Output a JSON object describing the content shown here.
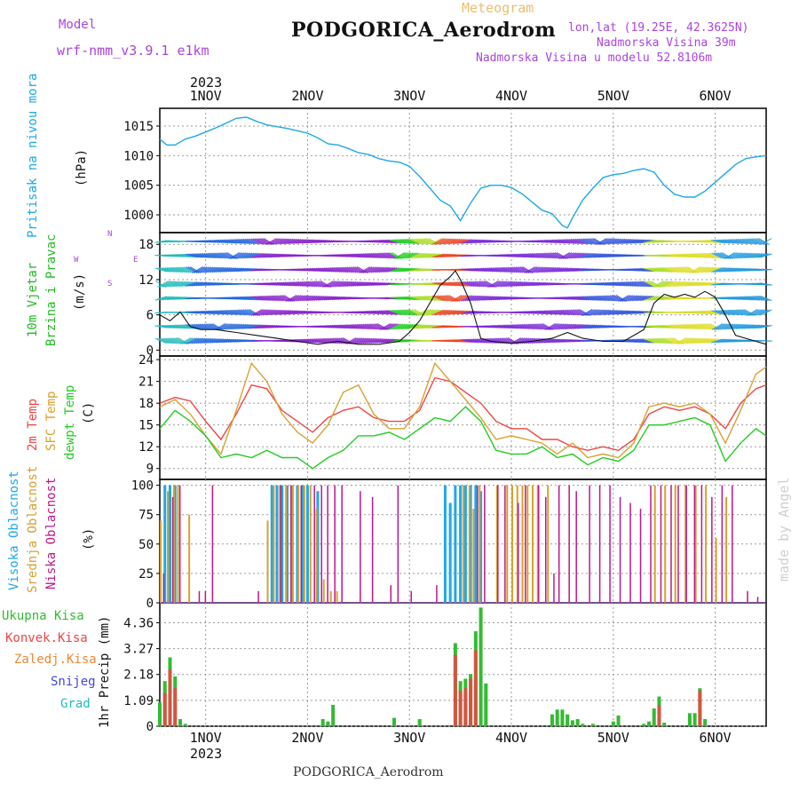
{
  "header": {
    "model_label": "Model",
    "model_name": "wrf-nmm_v3.9.1 e1km",
    "meteogram_label": "Meteogram",
    "station_title": "PODGORICA_Aerodrom",
    "lonlat": "lon,lat (19.25E, 42.3625N)",
    "elevation": "Nadmorska Visina 39m",
    "model_elevation": "Nadmorska Visina u modelu 52.8106m",
    "year_top": "2023",
    "year_bottom": "2023",
    "footer_station": "PODGORICA_Aerodrom",
    "watermark": "made by Angel"
  },
  "colors": {
    "pressure": "#1ea8e8",
    "temp2m": "#ee4444",
    "sfc": "#d8a030",
    "dewpt": "#22cc22",
    "high_cloud": "#1ea8e8",
    "mid_cloud": "#d8a030",
    "low_cloud": "#c0168a",
    "rain_total": "#33bb33",
    "rain_conv": "#ee4444",
    "freezing": "#ee8833",
    "snow": "#4444dd",
    "grad": "#22bbbb",
    "wind_label": "#22bb22",
    "compass": "#aa44dd"
  },
  "x_axis": {
    "days": [
      "1NOV",
      "2NOV",
      "3NOV",
      "4NOV",
      "5NOV",
      "6NOV"
    ]
  },
  "panels": {
    "pressure": {
      "label": "Pritisak na nivou mora",
      "unit": "(hPa)"
    },
    "wind": {
      "label1": "10m Vjetar",
      "label2": "Brzina i Pravac",
      "unit": "(m/s)",
      "compass_n": "N",
      "compass_s": "S",
      "compass_w": "W",
      "compass_e": "E"
    },
    "temp": {
      "label1": "2m Temp",
      "label2": "SFC Temp",
      "label3": "dewpt Temp",
      "unit": "(C)"
    },
    "cloud": {
      "label1": "Visoka Oblacnost",
      "label2": "Srednja Oblacnost",
      "label3": "Niska Oblacnost",
      "unit": "(%)"
    },
    "precip": {
      "ylabel": "1hr Precip (mm)",
      "legend": [
        "Ukupna Kisa",
        "Konvek.Kisa",
        "Zaledj.Kisa",
        "Snijeg",
        "Grad"
      ]
    }
  },
  "chart_data": [
    {
      "type": "line",
      "title": "Pritisak na nivou mora",
      "ylabel": "(hPa)",
      "ylim": [
        997,
        1018
      ],
      "yticks": [
        1000,
        1005,
        1010,
        1015
      ],
      "x_start_day": 0.55,
      "x_end_day": 6.5,
      "series": [
        {
          "x": [
            0.55,
            0.62,
            0.7,
            0.8,
            0.9,
            1.0,
            1.1,
            1.2,
            1.3,
            1.4,
            1.5,
            1.6,
            1.7,
            1.8,
            1.9,
            2.0,
            2.1,
            2.2,
            2.3,
            2.4,
            2.5,
            2.6,
            2.7,
            2.8,
            2.9,
            3.0,
            3.1,
            3.2,
            3.3,
            3.4,
            3.5,
            3.6,
            3.7,
            3.8,
            3.9,
            4.0,
            4.1,
            4.2,
            4.3,
            4.4,
            4.5,
            4.55,
            4.6,
            4.7,
            4.8,
            4.9,
            5.0,
            5.1,
            5.2,
            5.3,
            5.4,
            5.5,
            5.6,
            5.7,
            5.8,
            5.9,
            6.0,
            6.1,
            6.2,
            6.3,
            6.4,
            6.5
          ],
          "values": [
            1012.8,
            1011.8,
            1011.8,
            1012.8,
            1013.3,
            1014.0,
            1014.7,
            1015.5,
            1016.3,
            1016.5,
            1015.8,
            1015.2,
            1014.9,
            1014.6,
            1014.2,
            1013.8,
            1013.0,
            1012.0,
            1011.8,
            1011.2,
            1010.5,
            1010.2,
            1009.5,
            1009.1,
            1008.9,
            1008.2,
            1006.5,
            1004.5,
            1002.5,
            1001.5,
            999.0,
            1002.0,
            1004.5,
            1005.0,
            1005.0,
            1004.6,
            1003.6,
            1002.2,
            1000.8,
            1000.2,
            998.2,
            997.8,
            999.5,
            1002.5,
            1004.5,
            1006.3,
            1006.8,
            1007.0,
            1007.5,
            1007.8,
            1007.2,
            1005.0,
            1003.5,
            1003.0,
            1003.0,
            1004.0,
            1005.5,
            1007.0,
            1008.5,
            1009.5,
            1009.8,
            1010.0
          ]
        }
      ]
    },
    {
      "type": "line",
      "title": "10m Vjetar Brzina i Pravac",
      "ylabel": "(m/s)",
      "ylim": [
        -1,
        20
      ],
      "yticks": [
        0,
        6,
        12,
        18
      ],
      "series": [
        {
          "name": "speed",
          "x": [
            0.55,
            0.65,
            0.75,
            0.85,
            0.95,
            1.1,
            1.3,
            1.5,
            1.7,
            1.9,
            2.1,
            2.3,
            2.5,
            2.7,
            2.9,
            3.0,
            3.1,
            3.2,
            3.3,
            3.4,
            3.45,
            3.5,
            3.6,
            3.7,
            3.8,
            4.0,
            4.2,
            4.4,
            4.55,
            4.7,
            4.9,
            5.1,
            5.3,
            5.4,
            5.5,
            5.6,
            5.7,
            5.8,
            5.9,
            6.0,
            6.1,
            6.2,
            6.3,
            6.4,
            6.5
          ],
          "values": [
            6.0,
            5.0,
            6.5,
            4.0,
            3.5,
            3.5,
            3.0,
            2.5,
            2.0,
            1.5,
            1.0,
            1.5,
            1.0,
            1.0,
            1.5,
            3.0,
            5.0,
            8.0,
            11.0,
            12.5,
            13.5,
            12.0,
            8.0,
            2.0,
            1.5,
            1.2,
            1.5,
            2.0,
            3.0,
            2.0,
            1.5,
            1.5,
            3.5,
            8.0,
            9.5,
            9.0,
            9.5,
            9.0,
            10.0,
            9.0,
            6.0,
            2.5,
            2.0,
            1.5,
            1.0
          ]
        }
      ]
    },
    {
      "type": "line",
      "title": "2m Temp / SFC Temp / dewpt Temp",
      "ylabel": "(C)",
      "ylim": [
        7.5,
        24.5
      ],
      "yticks": [
        9,
        12,
        15,
        18,
        21,
        24
      ],
      "series": [
        {
          "name": "2m Temp",
          "x": [
            0.55,
            0.7,
            0.85,
            1.0,
            1.15,
            1.3,
            1.45,
            1.6,
            1.75,
            1.9,
            2.05,
            2.2,
            2.35,
            2.5,
            2.65,
            2.8,
            2.95,
            3.1,
            3.25,
            3.4,
            3.55,
            3.7,
            3.85,
            4.0,
            4.15,
            4.3,
            4.45,
            4.6,
            4.75,
            4.9,
            5.05,
            5.2,
            5.35,
            5.5,
            5.65,
            5.8,
            5.95,
            6.1,
            6.25,
            6.4,
            6.5
          ],
          "values": [
            18.0,
            18.8,
            18.3,
            15.5,
            13.0,
            16.5,
            20.5,
            20.0,
            17.0,
            15.5,
            14.0,
            16.0,
            17.0,
            17.5,
            16.0,
            15.5,
            15.5,
            17.0,
            21.5,
            21.0,
            19.5,
            18.0,
            15.5,
            14.5,
            14.5,
            13.0,
            13.0,
            12.0,
            11.5,
            12.0,
            11.5,
            13.0,
            16.5,
            17.5,
            17.0,
            17.5,
            16.5,
            14.5,
            18.0,
            20.0,
            20.5
          ]
        },
        {
          "name": "SFC Temp",
          "x": [
            0.55,
            0.7,
            0.85,
            1.0,
            1.15,
            1.3,
            1.45,
            1.6,
            1.75,
            1.9,
            2.05,
            2.2,
            2.35,
            2.5,
            2.65,
            2.8,
            2.95,
            3.1,
            3.25,
            3.4,
            3.55,
            3.7,
            3.85,
            4.0,
            4.15,
            4.3,
            4.45,
            4.6,
            4.75,
            4.9,
            5.05,
            5.2,
            5.35,
            5.5,
            5.65,
            5.8,
            5.95,
            6.1,
            6.25,
            6.4,
            6.5
          ],
          "values": [
            17.5,
            18.5,
            16.5,
            13.5,
            11.0,
            17.0,
            23.5,
            21.0,
            16.5,
            14.0,
            12.5,
            15.0,
            19.5,
            20.5,
            16.5,
            14.5,
            14.5,
            17.5,
            23.5,
            21.0,
            18.5,
            16.0,
            13.0,
            13.5,
            13.0,
            12.5,
            11.0,
            12.5,
            10.5,
            11.0,
            10.5,
            12.5,
            17.5,
            18.0,
            17.5,
            18.0,
            16.5,
            12.5,
            17.0,
            22.0,
            23.0
          ]
        },
        {
          "name": "dewpt Temp",
          "x": [
            0.55,
            0.7,
            0.85,
            1.0,
            1.15,
            1.3,
            1.45,
            1.6,
            1.75,
            1.9,
            2.05,
            2.2,
            2.35,
            2.5,
            2.65,
            2.8,
            2.95,
            3.1,
            3.25,
            3.4,
            3.55,
            3.7,
            3.85,
            4.0,
            4.15,
            4.3,
            4.45,
            4.6,
            4.75,
            4.9,
            5.05,
            5.2,
            5.35,
            5.5,
            5.65,
            5.8,
            5.95,
            6.1,
            6.25,
            6.4,
            6.5
          ],
          "values": [
            14.5,
            17.0,
            15.5,
            13.5,
            10.5,
            11.0,
            10.5,
            11.5,
            10.5,
            10.5,
            9.0,
            10.5,
            11.5,
            13.5,
            13.5,
            14.0,
            13.0,
            14.5,
            16.0,
            15.5,
            17.5,
            15.5,
            11.5,
            11.0,
            11.0,
            12.0,
            10.5,
            11.0,
            9.5,
            10.5,
            10.0,
            11.5,
            15.0,
            15.0,
            15.5,
            16.0,
            15.0,
            10.0,
            12.5,
            14.5,
            13.5
          ]
        }
      ]
    },
    {
      "type": "bar",
      "title": "Visoka / Srednja / Niska Oblacnost",
      "ylabel": "(%)",
      "ylim": [
        0,
        105
      ],
      "yticks": [
        0,
        25,
        50,
        75,
        100
      ],
      "series": [
        {
          "name": "Visoka Oblacnost",
          "x": [
            0.6,
            0.65,
            0.7,
            1.65,
            1.7,
            1.75,
            1.8,
            1.85,
            1.9,
            1.95,
            2.0,
            2.1,
            3.35,
            3.4,
            3.45,
            3.5,
            3.55,
            3.6,
            3.65,
            3.7
          ],
          "values": [
            100,
            100,
            100,
            100,
            100,
            100,
            100,
            100,
            100,
            100,
            100,
            95,
            100,
            85,
            100,
            100,
            100,
            100,
            100,
            95
          ]
        },
        {
          "name": "Srednja Oblacnost",
          "x": [
            0.55,
            0.62,
            0.68,
            0.72,
            0.83,
            1.6,
            1.66,
            1.72,
            1.78,
            1.84,
            1.9,
            1.96,
            2.02,
            2.08,
            2.15,
            2.22,
            2.28,
            3.52,
            3.58,
            3.62,
            3.68,
            3.85,
            3.95,
            4.0,
            4.05,
            4.1,
            4.15,
            4.2,
            4.25,
            4.35,
            5.4,
            5.5,
            5.6,
            5.7,
            5.8,
            5.9,
            6.0,
            6.1
          ],
          "values": [
            70,
            95,
            100,
            100,
            75,
            70,
            100,
            100,
            100,
            100,
            100,
            100,
            100,
            80,
            20,
            10,
            10,
            100,
            100,
            80,
            100,
            100,
            100,
            100,
            100,
            100,
            100,
            100,
            100,
            100,
            100,
            100,
            100,
            100,
            100,
            100,
            55,
            90
          ]
        },
        {
          "name": "Niska Oblacnost",
          "x": [
            0.57,
            0.66,
            0.73,
            0.92,
            0.98,
            1.05,
            1.5,
            1.72,
            1.82,
            1.92,
            2.05,
            2.12,
            2.18,
            2.25,
            2.32,
            2.5,
            2.62,
            2.8,
            2.87,
            3.0,
            3.25,
            3.65,
            3.72,
            3.85,
            3.92,
            4.05,
            4.12,
            4.25,
            4.32,
            4.4,
            4.45,
            4.55,
            4.62,
            4.75,
            4.85,
            4.95,
            5.05,
            5.15,
            5.25,
            5.35,
            5.45,
            5.55,
            5.62,
            5.7,
            5.78,
            5.85,
            5.95,
            6.05,
            6.15,
            6.3,
            6.4
          ],
          "values": [
            25,
            90,
            100,
            10,
            10,
            100,
            10,
            100,
            100,
            100,
            100,
            100,
            100,
            100,
            100,
            95,
            90,
            15,
            100,
            10,
            15,
            100,
            100,
            100,
            100,
            85,
            100,
            100,
            90,
            25,
            100,
            100,
            95,
            100,
            100,
            100,
            90,
            85,
            80,
            100,
            100,
            100,
            100,
            100,
            100,
            100,
            90,
            100,
            100,
            10,
            5
          ]
        }
      ]
    },
    {
      "type": "bar",
      "title": "1hr Precip",
      "ylabel": "1hr Precip (mm)",
      "ylim": [
        0,
        5.2
      ],
      "yticks": [
        0,
        1.09,
        2.18,
        3.27,
        4.36
      ],
      "series": [
        {
          "name": "Ukupna Kisa",
          "x": [
            0.55,
            0.6,
            0.65,
            0.7,
            0.75,
            0.8,
            2.15,
            2.2,
            2.25,
            2.85,
            3.1,
            3.45,
            3.5,
            3.55,
            3.6,
            3.65,
            3.7,
            3.75,
            4.4,
            4.45,
            4.5,
            4.55,
            4.6,
            4.65,
            4.7,
            4.8,
            5.0,
            5.05,
            5.3,
            5.35,
            5.4,
            5.45,
            5.5,
            5.75,
            5.8,
            5.85,
            5.9
          ],
          "values": [
            1.0,
            1.9,
            2.9,
            2.1,
            0.3,
            0.1,
            0.3,
            0.2,
            0.9,
            0.35,
            0.3,
            3.5,
            1.9,
            2.0,
            2.2,
            4.0,
            5.0,
            1.8,
            0.5,
            0.7,
            0.7,
            0.5,
            0.25,
            0.3,
            0.1,
            0.1,
            0.2,
            0.45,
            0.1,
            0.2,
            0.75,
            1.25,
            0.15,
            0.55,
            0.55,
            1.6,
            0.3
          ]
        },
        {
          "name": "Konvek.Kisa",
          "x": [
            0.6,
            0.65,
            0.7,
            3.45,
            3.5,
            3.55,
            3.6,
            3.65,
            5.45,
            5.85
          ],
          "values": [
            1.4,
            2.4,
            1.6,
            3.0,
            1.5,
            1.6,
            2.0,
            3.2,
            0.9,
            1.5
          ]
        }
      ]
    }
  ]
}
